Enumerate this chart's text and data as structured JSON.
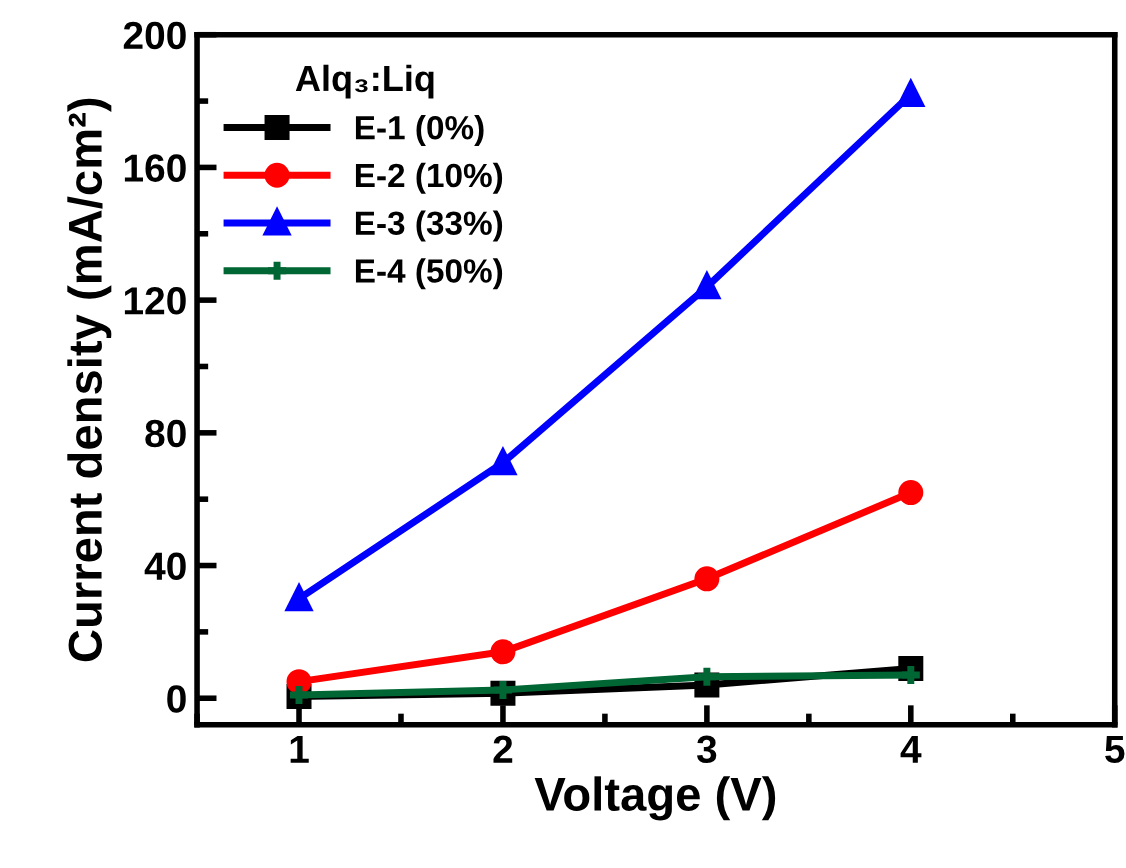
{
  "chart_data": {
    "type": "line",
    "xlabel": "Voltage (V)",
    "ylabel": "Current density (mA/cm²)",
    "legend_title": "Alq₃:Liq",
    "x": [
      1,
      2,
      3,
      4
    ],
    "xlim": [
      0.5,
      5
    ],
    "xticks": [
      1,
      2,
      3,
      4,
      5
    ],
    "ylim": [
      -8,
      200
    ],
    "yticks": [
      0,
      40,
      80,
      120,
      160,
      200
    ],
    "legend": "top left",
    "grid": false,
    "series": [
      {
        "name": "E-1 (0%)",
        "color": "#000000",
        "marker": "square",
        "values": [
          0.5,
          1.5,
          4,
          9
        ]
      },
      {
        "name": "E-2 (10%)",
        "color": "#ff0000",
        "marker": "circle",
        "values": [
          5,
          14,
          36,
          62
        ]
      },
      {
        "name": "E-3 (33%)",
        "color": "#0000ff",
        "marker": "triangle",
        "values": [
          30,
          71,
          124,
          182
        ]
      },
      {
        "name": "E-4 (50%)",
        "color": "#006633",
        "marker": "plus",
        "values": [
          1,
          2.5,
          6.5,
          7
        ]
      }
    ]
  }
}
